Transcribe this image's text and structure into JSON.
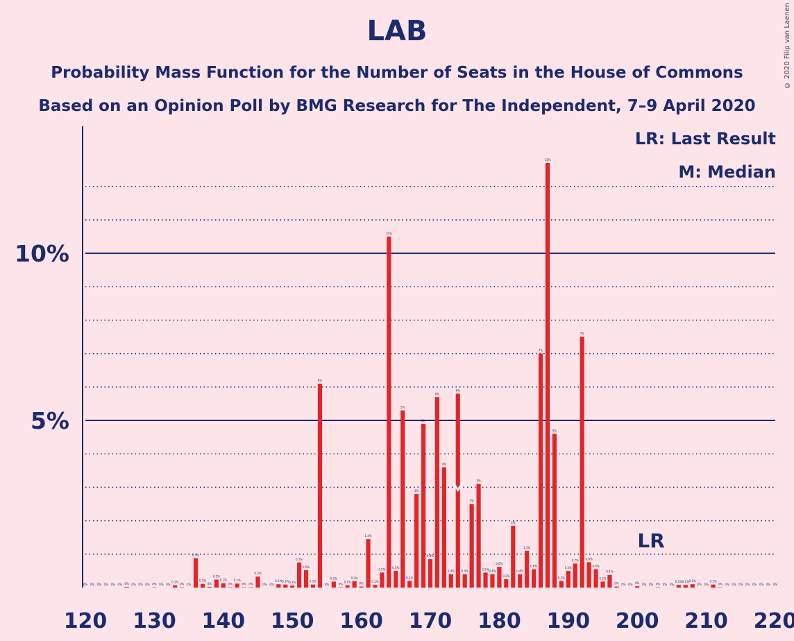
{
  "header": {
    "title": "LAB",
    "subtitle_1": "Probability Mass Function for the Number of Seats in the House of Commons",
    "subtitle_2": "Based on an Opinion Poll by BMG Research for The Independent, 7–9 April 2020",
    "copyright": "© 2020 Filip van Laenen"
  },
  "legend": {
    "last_result": "LR: Last Result",
    "median": "M: Median"
  },
  "markers": {
    "last_result_label": "LR",
    "last_result_seat": 202,
    "median_label": "M",
    "median_seat": 174
  },
  "colors": {
    "bar": "#e0262a",
    "axis": "#1c2b6e",
    "background": "#fde4e8"
  },
  "chart_data": {
    "type": "bar",
    "x_tick_labels": [
      "120",
      "130",
      "140",
      "150",
      "160",
      "170",
      "180",
      "190",
      "200",
      "210",
      "220"
    ],
    "y_tick_labels": [
      "5%",
      "10%"
    ],
    "xlim": [
      120,
      220
    ],
    "ylim": [
      0,
      0.138
    ],
    "major_gridlines": [
      0.05,
      0.1
    ],
    "minor_gridlines": [
      0.01,
      0.02,
      0.03,
      0.04,
      0.06,
      0.07,
      0.08,
      0.09,
      0.11,
      0.12
    ],
    "x": [
      120,
      121,
      122,
      123,
      124,
      125,
      126,
      127,
      128,
      129,
      130,
      131,
      132,
      133,
      134,
      135,
      136,
      137,
      138,
      139,
      140,
      141,
      142,
      143,
      144,
      145,
      146,
      147,
      148,
      149,
      150,
      151,
      152,
      153,
      154,
      155,
      156,
      157,
      158,
      159,
      160,
      161,
      162,
      163,
      164,
      165,
      166,
      167,
      168,
      169,
      170,
      171,
      172,
      173,
      174,
      175,
      176,
      177,
      178,
      179,
      180,
      181,
      182,
      183,
      184,
      185,
      186,
      187,
      188,
      189,
      190,
      191,
      192,
      193,
      194,
      195,
      196,
      197,
      198,
      199,
      200,
      201,
      202,
      203,
      204,
      205,
      206,
      207,
      208,
      209,
      210,
      211,
      212,
      213,
      214,
      215,
      216,
      217,
      218,
      219,
      220
    ],
    "values": [
      0,
      0,
      0,
      0,
      0,
      0,
      0.0002,
      0,
      0,
      0,
      0.0001,
      0,
      0,
      0.0007,
      0.0001,
      0,
      0.0088,
      0.0011,
      0.0002,
      0.0024,
      0.0013,
      0.0001,
      0.0012,
      0.0001,
      0.0001,
      0.0033,
      0,
      0,
      0.001,
      0.0009,
      0.0006,
      0.0075,
      0.0052,
      0.0009,
      0.061,
      0,
      0.0018,
      0.0001,
      0.0007,
      0.0019,
      0.0003,
      0.0145,
      0.0008,
      0.0045,
      0.105,
      0.005,
      0.053,
      0.002,
      0.028,
      0.049,
      0.0085,
      0.057,
      0.036,
      0.004,
      0.058,
      0.004,
      0.025,
      0.031,
      0.0045,
      0.004,
      0.0062,
      0.0025,
      0.0185,
      0.004,
      0.011,
      0.0055,
      0.07,
      0.127,
      0.046,
      0.002,
      0.005,
      0.0072,
      0.075,
      0.0076,
      0.0055,
      0.0018,
      0.0038,
      0.0003,
      0,
      0,
      0.0004,
      0,
      0,
      0.0001,
      0,
      0,
      0.0008,
      0.0008,
      0.001,
      0,
      0,
      0.0009,
      0.0001,
      0,
      0,
      0,
      0,
      0,
      0,
      0,
      0
    ],
    "data_labels": [
      "0%",
      "0%",
      "0%",
      "0%",
      "0%",
      "0%",
      "0%",
      "0%",
      "0%",
      "0%",
      "0%",
      "0%",
      "0%",
      "0.1%",
      "0%",
      "0%",
      "0.9%",
      "0.1%",
      "0%",
      "0.2%",
      "0.1%",
      "0%",
      "0.1%",
      "0%",
      "0%",
      "0.3%",
      "0%",
      "0%",
      "0.1%",
      "0.1%",
      "0.1%",
      "0.7%",
      "0.5%",
      "0.1%",
      "6%",
      "0%",
      "0.2%",
      "0%",
      "0.1%",
      "0.2%",
      "0%",
      "1.4%",
      "0.1%",
      "0.5%",
      "10%",
      "0.5%",
      "5%",
      "0.2%",
      "3%",
      "5%",
      "0.8%",
      "6%",
      "4%",
      "0.4%",
      "6%",
      "0.4%",
      "2%",
      "3%",
      "0.5%",
      "0.4%",
      "0.6%",
      "0.2%",
      "2%",
      "0.4%",
      "1.1%",
      "0.6%",
      "7%",
      "13%",
      "5%",
      "0.2%",
      "0.5%",
      "0.7%",
      "7%",
      "0.8%",
      "0.6%",
      "0.2%",
      "0.4%",
      "0%",
      "0%",
      "0%",
      "0%",
      "0%",
      "0%",
      "0%",
      "0%",
      "0%",
      "0.1%",
      "0.1%",
      "0.1%",
      "0%",
      "0%",
      "0.1%",
      "0%",
      "0%",
      "0%",
      "0%",
      "0%",
      "0%",
      "0%",
      "0%",
      "0%"
    ],
    "title": "LAB",
    "xlabel": "",
    "ylabel": "",
    "grid": true
  }
}
